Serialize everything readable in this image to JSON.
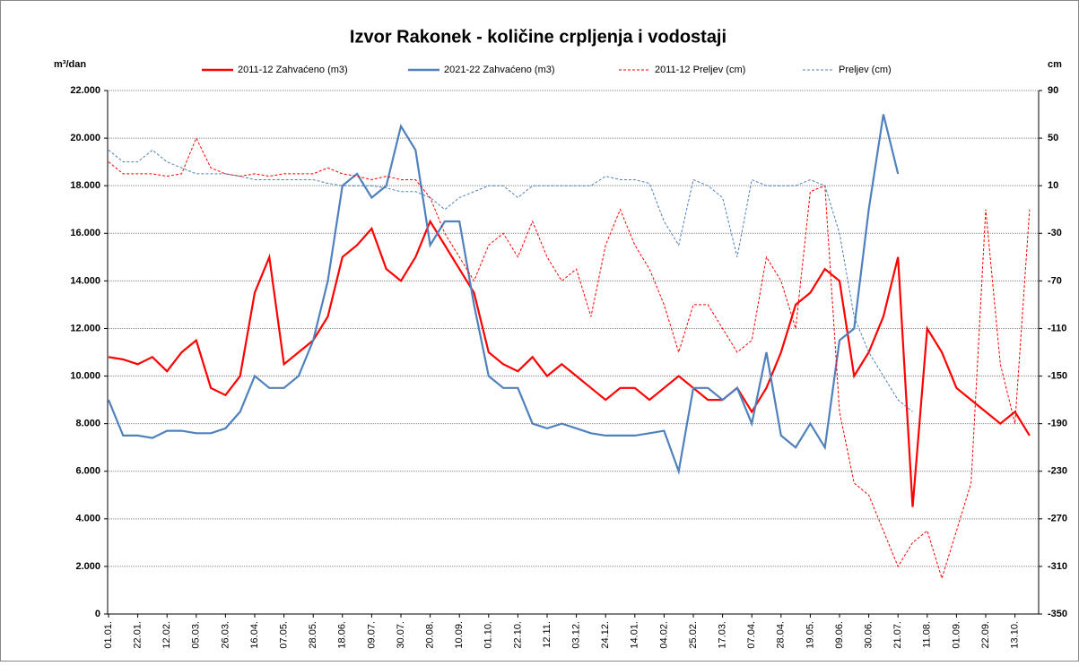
{
  "chart_data": {
    "type": "line",
    "title": "Izvor Rakonek - količine crpljenja i vodostaji",
    "y_label": "m³/dan",
    "y2_label": "cm",
    "categories": [
      "01.01.",
      null,
      "22.01.",
      null,
      "12.02.",
      null,
      "05.03.",
      null,
      "26.03.",
      null,
      "16.04.",
      null,
      "07.05.",
      null,
      "28.05.",
      null,
      "18.06.",
      null,
      "09.07.",
      null,
      "30.07.",
      null,
      "20.08.",
      null,
      "10.09.",
      null,
      "01.10.",
      null,
      "22.10.",
      null,
      "12.11.",
      null,
      "03.12.",
      null,
      "24.12.",
      null,
      "14.01.",
      null,
      "04.02.",
      null,
      "25.02.",
      null,
      "17.03.",
      null,
      "07.04.",
      null,
      "28.04.",
      null,
      "19.05.",
      null,
      "09.06.",
      null,
      "30.06.",
      null,
      "21.07.",
      null,
      "11.08.",
      null,
      "01.09.",
      null,
      "22.09.",
      null,
      "13.10.",
      null
    ],
    "series": [
      {
        "name": "2011-12 Zahvaćeno (m3)",
        "color": "#ff0000",
        "dash": false,
        "values": [
          10800,
          10700,
          10500,
          10800,
          10200,
          11000,
          11500,
          9500,
          9200,
          10000,
          13500,
          15000,
          10500,
          11000,
          11500,
          12500,
          15000,
          15500,
          16200,
          14500,
          14000,
          15000,
          16500,
          15500,
          14500,
          13500,
          11000,
          10500,
          10200,
          10800,
          10000,
          10500,
          10000,
          9500,
          9000,
          9500,
          9500,
          9000,
          9500,
          10000,
          9500,
          9000,
          9000,
          9500,
          8500,
          9500,
          11000,
          13000,
          13500,
          14500,
          14000,
          10000,
          11000,
          12500,
          15000,
          4500,
          12000,
          11000,
          9500,
          9000,
          8500,
          8000,
          8500,
          7500
        ]
      },
      {
        "name": "2021-22 Zahvaćeno (m3)",
        "color": "#4f81bd",
        "dash": false,
        "values": [
          9000,
          7500,
          7500,
          7400,
          7700,
          7700,
          7600,
          7600,
          7800,
          8500,
          10000,
          9500,
          9500,
          10000,
          11500,
          14000,
          18000,
          18500,
          17500,
          18000,
          20500,
          19500,
          15500,
          16500,
          16500,
          13000,
          10000,
          9500,
          9500,
          8000,
          7800,
          8000,
          7800,
          7600,
          7500,
          7500,
          7500,
          7600,
          7700,
          6000,
          9500,
          9500,
          9000,
          9500,
          8000,
          11000,
          7500,
          7000,
          8000,
          7000,
          11500,
          12000,
          17000,
          21000,
          18500,
          null,
          null,
          null,
          null,
          null,
          null,
          null,
          null,
          null
        ]
      },
      {
        "name": "2011-12 Preljev (cm)",
        "color": "#ff0000",
        "dash": true,
        "axis": "y2",
        "values": [
          30,
          20,
          20,
          20,
          18,
          20,
          50,
          25,
          20,
          18,
          20,
          18,
          20,
          20,
          20,
          25,
          20,
          18,
          15,
          18,
          15,
          15,
          0,
          -30,
          -50,
          -70,
          -40,
          -30,
          -50,
          -20,
          -50,
          -70,
          -60,
          -100,
          -40,
          -10,
          -40,
          -60,
          -90,
          -130,
          -90,
          -90,
          -110,
          -130,
          -120,
          -50,
          -70,
          -110,
          5,
          10,
          -180,
          -240,
          -250,
          -280,
          -310,
          -290,
          -280,
          -320,
          -280,
          -240,
          -10,
          -140,
          -190,
          -10
        ]
      },
      {
        "name": "Preljev (cm)",
        "color": "#4f81bd",
        "dash": true,
        "axis": "y2",
        "values": [
          40,
          30,
          30,
          40,
          30,
          25,
          20,
          20,
          20,
          18,
          15,
          15,
          15,
          15,
          15,
          12,
          10,
          10,
          10,
          8,
          5,
          5,
          0,
          -10,
          0,
          5,
          10,
          10,
          0,
          10,
          10,
          10,
          10,
          10,
          18,
          15,
          15,
          12,
          -20,
          -40,
          15,
          10,
          0,
          -50,
          15,
          10,
          10,
          10,
          15,
          10,
          -30,
          -100,
          -130,
          -150,
          -170,
          -180,
          null,
          null,
          null,
          null,
          null,
          null,
          null,
          null
        ]
      }
    ],
    "ylim": [
      0,
      22000
    ],
    "yticks": [
      0,
      {
        "value": 2000,
        "label": "2.000"
      },
      {
        "value": 4000,
        "label": "4.000"
      },
      {
        "value": 6000,
        "label": "6.000"
      },
      {
        "value": 8000,
        "label": "8.000"
      },
      {
        "value": 10000,
        "label": "10.000"
      },
      {
        "value": 12000,
        "label": "12.000"
      },
      {
        "value": 14000,
        "label": "14.000"
      },
      {
        "value": 16000,
        "label": "16.000"
      },
      {
        "value": 18000,
        "label": "18.000"
      },
      {
        "value": 20000,
        "label": "20.000"
      },
      {
        "value": 22000,
        "label": "22.000"
      }
    ],
    "y2lim": [
      -350,
      90
    ],
    "y2ticks": [
      -350,
      -310,
      -270,
      -230,
      -190,
      -150,
      -110,
      -70,
      -30,
      10,
      50,
      90
    ],
    "grid": true,
    "legend": "top"
  }
}
